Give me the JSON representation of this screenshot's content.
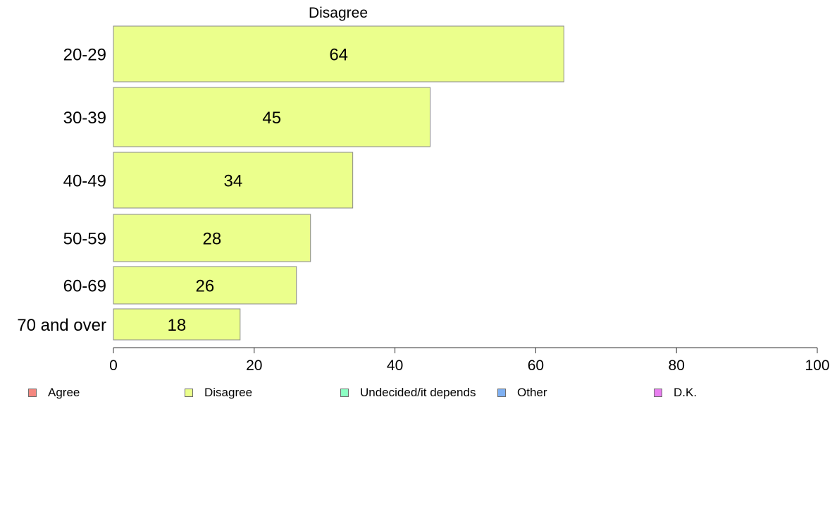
{
  "chart_data": {
    "type": "bar",
    "orientation": "horizontal",
    "title": "Disagree",
    "categories": [
      "20-29",
      "30-39",
      "40-49",
      "50-59",
      "60-69",
      "70 and over"
    ],
    "values": [
      64,
      45,
      34,
      28,
      26,
      18
    ],
    "data_labels": [
      "64",
      "45",
      "34",
      "28",
      "26",
      "18"
    ],
    "bar_color": "#ebff8c",
    "xlim": [
      0,
      100
    ],
    "x_ticks": [
      0,
      20,
      40,
      60,
      80,
      100
    ],
    "x_tick_labels": [
      "0",
      "20",
      "40",
      "60",
      "80",
      "100"
    ],
    "grid": false,
    "legend_position": "bottom",
    "legend": [
      {
        "label": "Agree",
        "color": "#f4877f"
      },
      {
        "label": "Disagree",
        "color": "#ebff8c"
      },
      {
        "label": "Undecided/it depends",
        "color": "#8cffc3"
      },
      {
        "label": "Other",
        "color": "#7fb0f2"
      },
      {
        "label": "D.K.",
        "color": "#e97ff0"
      }
    ]
  }
}
